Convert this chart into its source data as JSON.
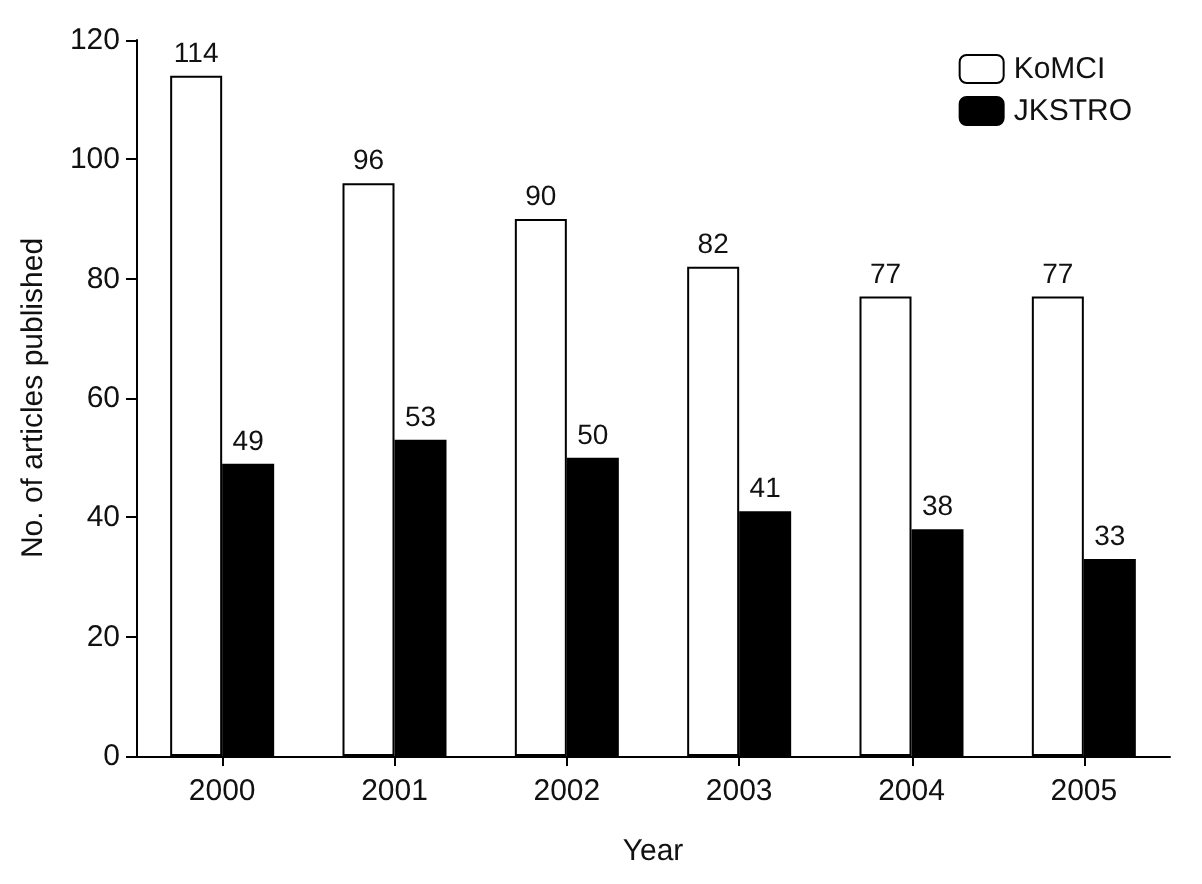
{
  "chart_data": {
    "type": "bar",
    "xlabel": "Year",
    "ylabel": "No. of articles published",
    "categories": [
      "2000",
      "2001",
      "2002",
      "2003",
      "2004",
      "2005"
    ],
    "series": [
      {
        "name": "KoMCI",
        "color": "#ffffff",
        "values": [
          114,
          96,
          90,
          82,
          77,
          77
        ]
      },
      {
        "name": "JKSTRO",
        "color": "#000000",
        "values": [
          49,
          53,
          50,
          41,
          38,
          33
        ]
      }
    ],
    "ylim": [
      0,
      120
    ],
    "yticks": [
      0,
      20,
      40,
      60,
      80,
      100,
      120
    ],
    "grid": false,
    "legend": "top right",
    "data_labels": true
  }
}
